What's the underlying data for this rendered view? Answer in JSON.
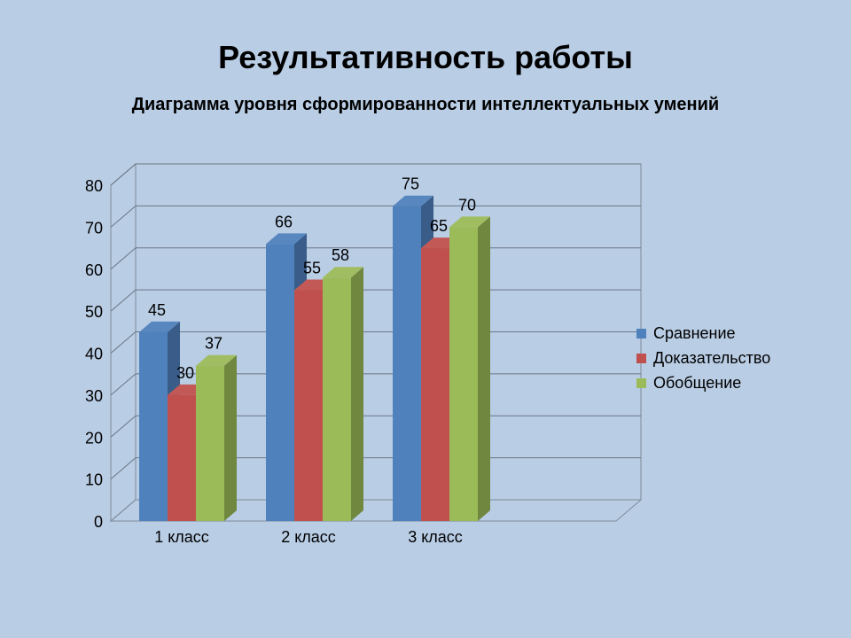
{
  "slide": {
    "title": "Результативность работы"
  },
  "chart_data": {
    "type": "bar",
    "title": "Диаграмма уровня сформированности интеллектуальных умений",
    "categories": [
      "1 класс",
      "2 класс",
      "3 класс"
    ],
    "series": [
      {
        "name": "Сравнение",
        "values": [
          45,
          66,
          75
        ],
        "color": "#4f81bd"
      },
      {
        "name": "Доказательство",
        "values": [
          30,
          55,
          65
        ],
        "color": "#c0504d"
      },
      {
        "name": "Обобщение",
        "values": [
          37,
          58,
          70
        ],
        "color": "#9bbb59"
      }
    ],
    "ylim": [
      0,
      80
    ],
    "yticks": [
      0,
      10,
      20,
      30,
      40,
      50,
      60,
      70,
      80
    ],
    "grid": true,
    "legend_position": "right",
    "style": "3d-clustered-column"
  }
}
